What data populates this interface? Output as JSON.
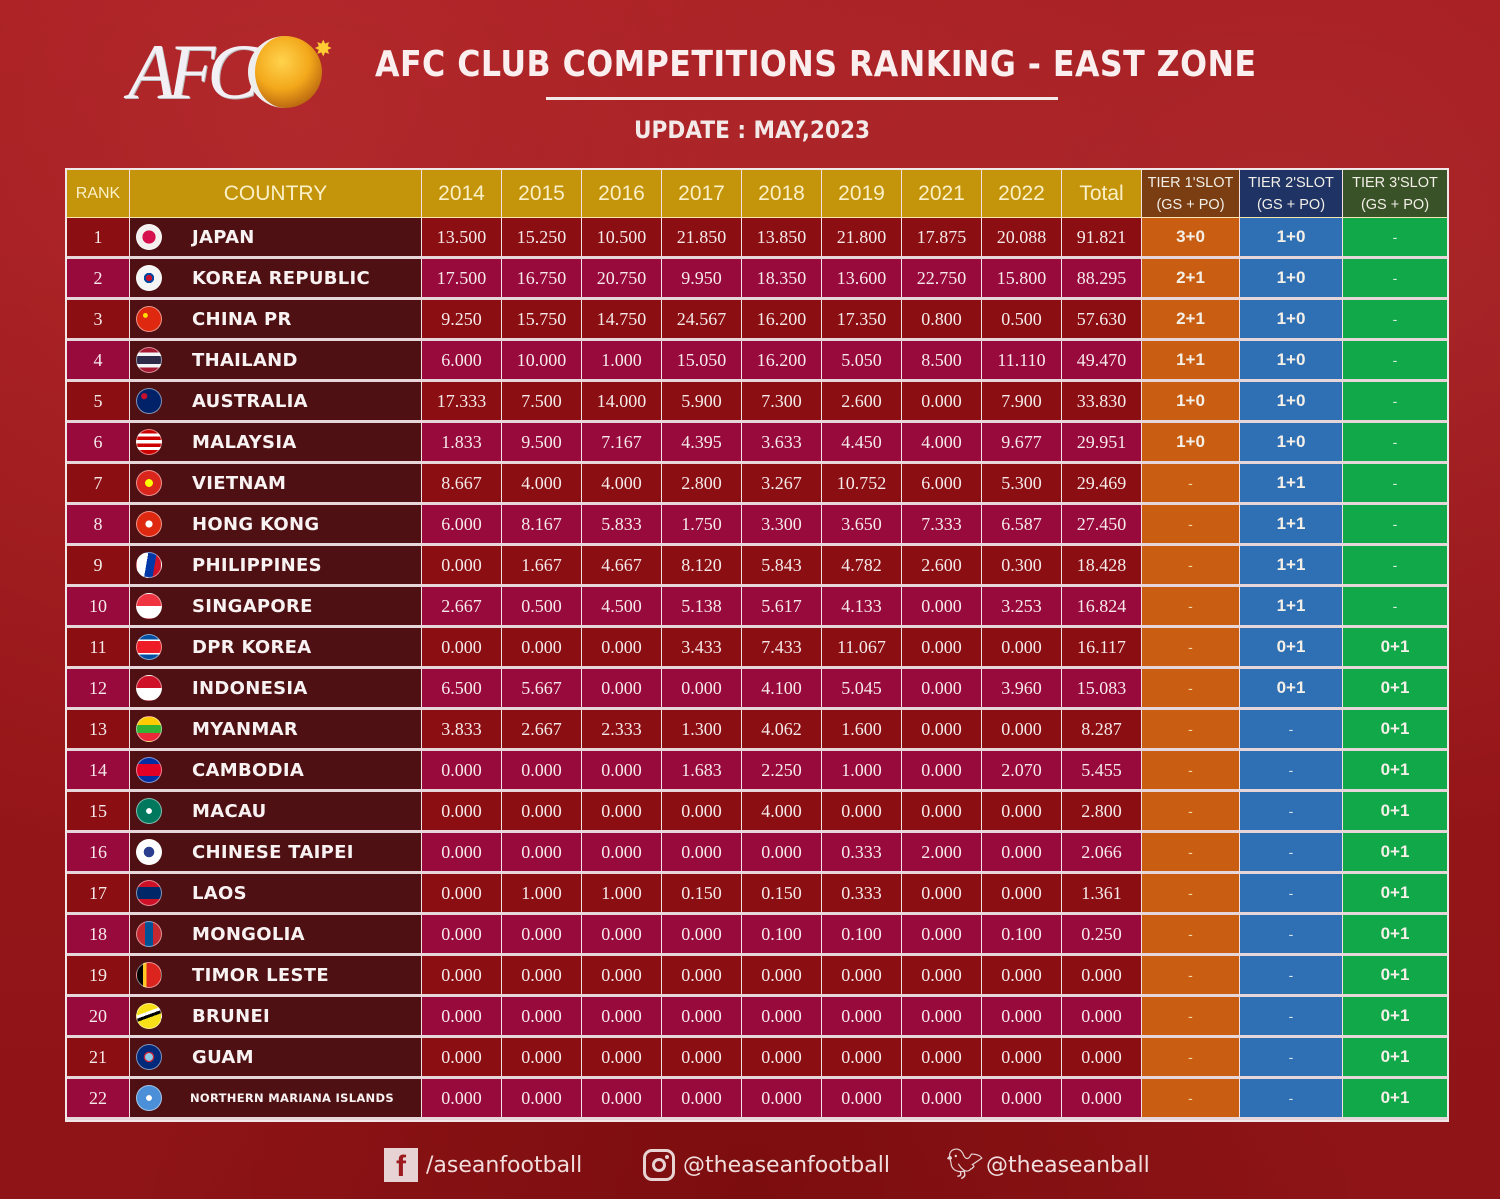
{
  "header": {
    "logo_text": "AFC",
    "title": "AFC CLUB COMPETITIONS RANKING - EAST ZONE",
    "update": "UPDATE : MAY,2023"
  },
  "table": {
    "columns": {
      "rank": "RANK",
      "country": "COUNTRY",
      "years": [
        "2014",
        "2015",
        "2016",
        "2017",
        "2018",
        "2019",
        "2021",
        "2022"
      ],
      "total": "Total",
      "tier1": [
        "TIER 1'SLOT",
        "(GS + PO)"
      ],
      "tier2": [
        "TIER 2'SLOT",
        "(GS + PO)"
      ],
      "tier3": [
        "TIER 3'SLOT",
        "(GS + PO)"
      ]
    },
    "rows": [
      {
        "rank": "1",
        "country": "JAPAN",
        "flag": "japan-flag-icon",
        "scores": [
          "13.500",
          "15.250",
          "10.500",
          "21.850",
          "13.850",
          "21.800",
          "17.875",
          "20.088"
        ],
        "total": "91.821",
        "tier1": "3+0",
        "tier2": "1+0",
        "tier3": "-"
      },
      {
        "rank": "2",
        "country": "KOREA REPUBLIC",
        "flag": "korea-republic-flag-icon",
        "scores": [
          "17.500",
          "16.750",
          "20.750",
          "9.950",
          "18.350",
          "13.600",
          "22.750",
          "15.800"
        ],
        "total": "88.295",
        "tier1": "2+1",
        "tier2": "1+0",
        "tier3": "-"
      },
      {
        "rank": "3",
        "country": "CHINA PR",
        "flag": "china-flag-icon",
        "scores": [
          "9.250",
          "15.750",
          "14.750",
          "24.567",
          "16.200",
          "17.350",
          "0.800",
          "0.500"
        ],
        "total": "57.630",
        "tier1": "2+1",
        "tier2": "1+0",
        "tier3": "-"
      },
      {
        "rank": "4",
        "country": "THAILAND",
        "flag": "thailand-flag-icon",
        "scores": [
          "6.000",
          "10.000",
          "1.000",
          "15.050",
          "16.200",
          "5.050",
          "8.500",
          "11.110"
        ],
        "total": "49.470",
        "tier1": "1+1",
        "tier2": "1+0",
        "tier3": "-"
      },
      {
        "rank": "5",
        "country": "AUSTRALIA",
        "flag": "australia-flag-icon",
        "scores": [
          "17.333",
          "7.500",
          "14.000",
          "5.900",
          "7.300",
          "2.600",
          "0.000",
          "7.900"
        ],
        "total": "33.830",
        "tier1": "1+0",
        "tier2": "1+0",
        "tier3": "-"
      },
      {
        "rank": "6",
        "country": "MALAYSIA",
        "flag": "malaysia-flag-icon",
        "scores": [
          "1.833",
          "9.500",
          "7.167",
          "4.395",
          "3.633",
          "4.450",
          "4.000",
          "9.677"
        ],
        "total": "29.951",
        "tier1": "1+0",
        "tier2": "1+0",
        "tier3": "-"
      },
      {
        "rank": "7",
        "country": "VIETNAM",
        "flag": "vietnam-flag-icon",
        "scores": [
          "8.667",
          "4.000",
          "4.000",
          "2.800",
          "3.267",
          "10.752",
          "6.000",
          "5.300"
        ],
        "total": "29.469",
        "tier1": "-",
        "tier2": "1+1",
        "tier3": "-"
      },
      {
        "rank": "8",
        "country": "HONG KONG",
        "flag": "hong-kong-flag-icon",
        "scores": [
          "6.000",
          "8.167",
          "5.833",
          "1.750",
          "3.300",
          "3.650",
          "7.333",
          "6.587"
        ],
        "total": "27.450",
        "tier1": "-",
        "tier2": "1+1",
        "tier3": "-"
      },
      {
        "rank": "9",
        "country": "PHILIPPINES",
        "flag": "philippines-flag-icon",
        "scores": [
          "0.000",
          "1.667",
          "4.667",
          "8.120",
          "5.843",
          "4.782",
          "2.600",
          "0.300"
        ],
        "total": "18.428",
        "tier1": "-",
        "tier2": "1+1",
        "tier3": "-"
      },
      {
        "rank": "10",
        "country": "SINGAPORE",
        "flag": "singapore-flag-icon",
        "scores": [
          "2.667",
          "0.500",
          "4.500",
          "5.138",
          "5.617",
          "4.133",
          "0.000",
          "3.253"
        ],
        "total": "16.824",
        "tier1": "-",
        "tier2": "1+1",
        "tier3": "-"
      },
      {
        "rank": "11",
        "country": "DPR KOREA",
        "flag": "dpr-korea-flag-icon",
        "scores": [
          "0.000",
          "0.000",
          "0.000",
          "3.433",
          "7.433",
          "11.067",
          "0.000",
          "0.000"
        ],
        "total": "16.117",
        "tier1": "-",
        "tier2": "0+1",
        "tier3": "0+1"
      },
      {
        "rank": "12",
        "country": "INDONESIA",
        "flag": "indonesia-flag-icon",
        "scores": [
          "6.500",
          "5.667",
          "0.000",
          "0.000",
          "4.100",
          "5.045",
          "0.000",
          "3.960"
        ],
        "total": "15.083",
        "tier1": "-",
        "tier2": "0+1",
        "tier3": "0+1"
      },
      {
        "rank": "13",
        "country": "MYANMAR",
        "flag": "myanmar-flag-icon",
        "scores": [
          "3.833",
          "2.667",
          "2.333",
          "1.300",
          "4.062",
          "1.600",
          "0.000",
          "0.000"
        ],
        "total": "8.287",
        "tier1": "-",
        "tier2": "-",
        "tier3": "0+1"
      },
      {
        "rank": "14",
        "country": "CAMBODIA",
        "flag": "cambodia-flag-icon",
        "scores": [
          "0.000",
          "0.000",
          "0.000",
          "1.683",
          "2.250",
          "1.000",
          "0.000",
          "2.070"
        ],
        "total": "5.455",
        "tier1": "-",
        "tier2": "-",
        "tier3": "0+1"
      },
      {
        "rank": "15",
        "country": "MACAU",
        "flag": "macau-flag-icon",
        "scores": [
          "0.000",
          "0.000",
          "0.000",
          "0.000",
          "4.000",
          "0.000",
          "0.000",
          "0.000"
        ],
        "total": "2.800",
        "tier1": "-",
        "tier2": "-",
        "tier3": "0+1"
      },
      {
        "rank": "16",
        "country": "CHINESE TAIPEI",
        "flag": "chinese-taipei-flag-icon",
        "scores": [
          "0.000",
          "0.000",
          "0.000",
          "0.000",
          "0.000",
          "0.333",
          "2.000",
          "0.000"
        ],
        "total": "2.066",
        "tier1": "-",
        "tier2": "-",
        "tier3": "0+1"
      },
      {
        "rank": "17",
        "country": "LAOS",
        "flag": "laos-flag-icon",
        "scores": [
          "0.000",
          "1.000",
          "1.000",
          "0.150",
          "0.150",
          "0.333",
          "0.000",
          "0.000"
        ],
        "total": "1.361",
        "tier1": "-",
        "tier2": "-",
        "tier3": "0+1"
      },
      {
        "rank": "18",
        "country": "MONGOLIA",
        "flag": "mongolia-flag-icon",
        "scores": [
          "0.000",
          "0.000",
          "0.000",
          "0.000",
          "0.100",
          "0.100",
          "0.000",
          "0.100"
        ],
        "total": "0.250",
        "tier1": "-",
        "tier2": "-",
        "tier3": "0+1"
      },
      {
        "rank": "19",
        "country": "TIMOR LESTE",
        "flag": "timor-leste-flag-icon",
        "scores": [
          "0.000",
          "0.000",
          "0.000",
          "0.000",
          "0.000",
          "0.000",
          "0.000",
          "0.000"
        ],
        "total": "0.000",
        "tier1": "-",
        "tier2": "-",
        "tier3": "0+1"
      },
      {
        "rank": "20",
        "country": "BRUNEI",
        "flag": "brunei-flag-icon",
        "scores": [
          "0.000",
          "0.000",
          "0.000",
          "0.000",
          "0.000",
          "0.000",
          "0.000",
          "0.000"
        ],
        "total": "0.000",
        "tier1": "-",
        "tier2": "-",
        "tier3": "0+1"
      },
      {
        "rank": "21",
        "country": "GUAM",
        "flag": "guam-flag-icon",
        "scores": [
          "0.000",
          "0.000",
          "0.000",
          "0.000",
          "0.000",
          "0.000",
          "0.000",
          "0.000"
        ],
        "total": "0.000",
        "tier1": "-",
        "tier2": "-",
        "tier3": "0+1"
      },
      {
        "rank": "22",
        "country": "NORTHERN MARIANA ISLANDS",
        "flag": "northern-mariana-islands-flag-icon",
        "scores": [
          "0.000",
          "0.000",
          "0.000",
          "0.000",
          "0.000",
          "0.000",
          "0.000",
          "0.000"
        ],
        "total": "0.000",
        "tier1": "-",
        "tier2": "-",
        "tier3": "0+1"
      }
    ]
  },
  "flags": {
    "japan-flag-icon": "radial-gradient(circle, #d6104f 0 38%, #f5f0f0 40%)",
    "korea-republic-flag-icon": "radial-gradient(circle, #c8102e 0 18%, #0047a0 19% 30%, #f5f5f5 31%)",
    "china-flag-icon": "radial-gradient(circle at 35% 35%, #ffde00 0 10%, #de2910 12%)",
    "thailand-flag-icon": "linear-gradient(#a51931 0 18%, #f4f5f8 18% 34%, #2d2a4a 34% 66%, #f4f5f8 66% 82%, #a51931 82%)",
    "australia-flag-icon": "radial-gradient(circle at 30% 30%, #c8102e 0 12%, #012169 14%)",
    "malaysia-flag-icon": "linear-gradient(#cc0001 0 14%, #fff 14% 28%, #cc0001 28% 42%, #fff 42% 56%, #cc0001 56% 70%, #fff 70% 84%, #cc0001 84%)",
    "vietnam-flag-icon": "radial-gradient(circle, #ffff00 0 22%, #da251d 24%)",
    "hong-kong-flag-icon": "radial-gradient(circle, #fff 0 20%, #de2910 22%)",
    "philippines-flag-icon": "linear-gradient(100deg, #fff 0 40%, #0038a8 40% 70%, #ce1126 70%)",
    "singapore-flag-icon": "linear-gradient(#ef3340 0 50%, #fff 50%)",
    "dpr-korea-flag-icon": "linear-gradient(#024fa2 0 18%, #fff 18% 24%, #ed1c27 24% 76%, #fff 76% 82%, #024fa2 82%)",
    "indonesia-flag-icon": "linear-gradient(#ce1126 0 50%, #fff 50%)",
    "myanmar-flag-icon": "linear-gradient(#fecb00 0 33%, #34b233 33% 66%, #ea2839 66%)",
    "cambodia-flag-icon": "linear-gradient(#032ea1 0 25%, #e00025 25% 75%, #032ea1 75%)",
    "macau-flag-icon": "radial-gradient(circle, #fff 0 16%, #00785e 18%)",
    "chinese-taipei-flag-icon": "radial-gradient(circle, #2a3d8f 0 30%, #fff 32%)",
    "laos-flag-icon": "linear-gradient(#ce1126 0 25%, #002868 25% 75%, #ce1126 75%)",
    "mongolia-flag-icon": "linear-gradient(90deg, #c4272f 0 33%, #015197 33% 66%, #c4272f 66%)",
    "timor-leste-flag-icon": "linear-gradient(90deg, #000 0 25%, #ffc726 25% 40%, #dc241f 40%)",
    "brunei-flag-icon": "linear-gradient(160deg, #f7e017 0 35%, #fff 35% 45%, #000 45% 55%, #f7e017 55%)",
    "guam-flag-icon": "radial-gradient(ellipse, #8ecae6 0 22%, #c62139 24% 30%, #00297a 32%)",
    "northern-mariana-islands-flag-icon": "radial-gradient(circle, #fff 0 16%, #4a8fd8 18%)"
  },
  "footer": {
    "facebook": "/aseanfootball",
    "instagram": "@theaseanfootball",
    "twitter": "@theaseanball"
  },
  "colors": {
    "header_gold": "#c4940a",
    "tier1_header": "#7a3e12",
    "tier2_header": "#1f3464",
    "tier3_header": "#3a5228",
    "tier1_cell": "#c95e12",
    "tier2_cell": "#2f6fb3",
    "tier3_cell": "#11a84a",
    "row_odd": "#8b0f12",
    "row_even": "#990a3c",
    "country_cell": "#4e1012"
  }
}
